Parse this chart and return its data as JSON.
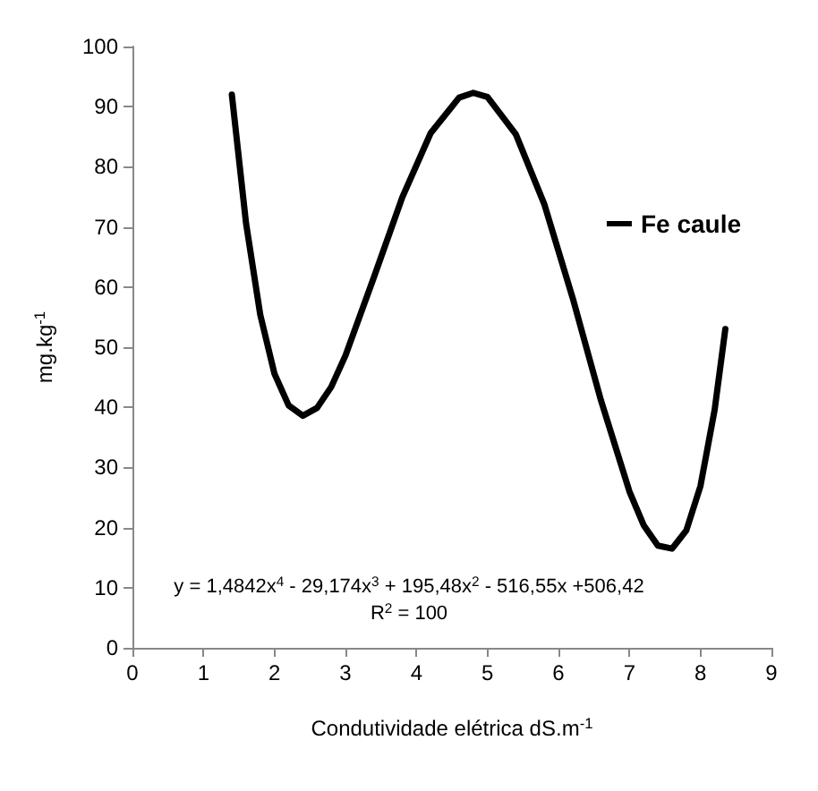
{
  "chart_data": {
    "type": "line",
    "xlabel": "Condutividade elétrica dS.m$^{-1}$",
    "ylabel": "mg.kg$^{-1}$",
    "xlim": [
      0,
      9
    ],
    "xticks": [
      0,
      1,
      2,
      3,
      4,
      5,
      6,
      7,
      8,
      9
    ],
    "ylim": [
      0,
      100
    ],
    "yticks": [
      0,
      10,
      20,
      30,
      40,
      50,
      60,
      70,
      80,
      90,
      100
    ],
    "grid": false,
    "legend": "right",
    "marker": "none",
    "line_style": "solid",
    "series": [
      {
        "name": "Fe caule",
        "color": "#000000",
        "x": [
          1.4,
          1.6,
          1.8,
          2.0,
          2.2,
          2.4,
          2.6,
          2.8,
          3.0,
          3.4,
          3.8,
          4.2,
          4.6,
          4.8,
          5.0,
          5.4,
          5.8,
          6.2,
          6.6,
          7.0,
          7.2,
          7.4,
          7.6,
          7.8,
          8.0,
          8.2,
          8.35
        ],
        "values": [
          92.0,
          70.6,
          55.4,
          45.6,
          40.3,
          38.6,
          39.9,
          43.4,
          48.6,
          61.6,
          74.9,
          85.6,
          91.5,
          92.3,
          91.6,
          85.4,
          73.8,
          58.2,
          41.1,
          26.0,
          20.4,
          17.0,
          16.5,
          19.5,
          26.9,
          39.6,
          53.0
        ]
      }
    ],
    "annotations": [
      "y = 1,4842x$^{4}$ - 29,174x$^{3}$ + 195,48x$^{2}$ - 516,55x +506,42",
      "R$^{2}$ = 100"
    ]
  }
}
